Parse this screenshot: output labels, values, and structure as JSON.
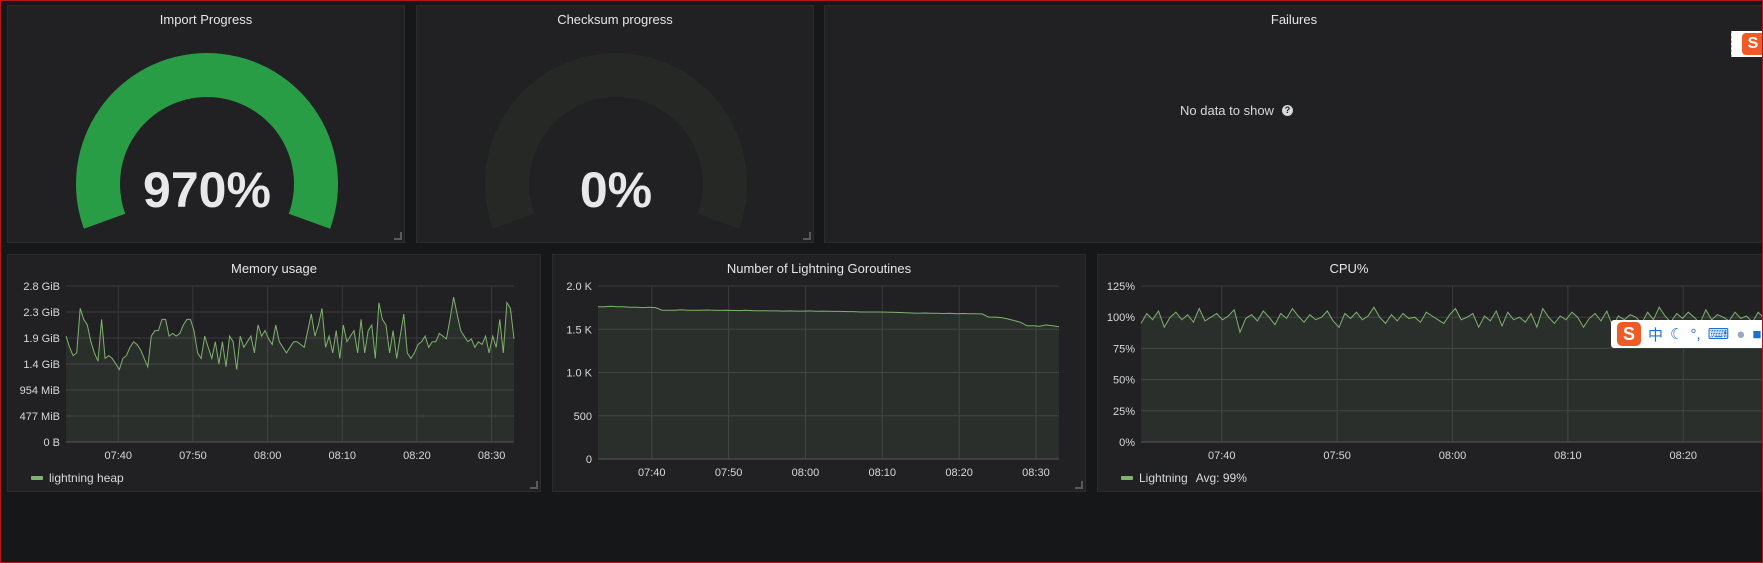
{
  "panels": {
    "import_progress": {
      "title": "Import Progress",
      "value": "970%",
      "fill": 1.0,
      "color": "#299c46"
    },
    "checksum_progress": {
      "title": "Checksum progress",
      "value": "0%",
      "fill": 0.0,
      "color": "#2b2d2a"
    },
    "failures": {
      "title": "Failures",
      "no_data_text": "No data to show",
      "help_icon": "question-circle-icon"
    },
    "memory": {
      "title": "Memory usage",
      "legend": "lightning heap"
    },
    "goroutines": {
      "title": "Number of Lightning Goroutines"
    },
    "cpu": {
      "title": "CPU%",
      "legend_name": "Lightning",
      "legend_avg": "Avg: 99%"
    }
  },
  "ime": {
    "logo": "S",
    "lang": "中",
    "icons": [
      "moon-icon",
      "punctuation-icon",
      "keyboard-icon",
      "user-icon",
      "shirt-icon"
    ]
  },
  "colors": {
    "series": "#7eb26d",
    "gauge_green": "#299c46",
    "panel_bg": "#212124",
    "page_bg": "#161719"
  },
  "chart_data": [
    {
      "name": "memory",
      "type": "line",
      "title": "Memory usage",
      "x_ticks": [
        "07:40",
        "07:50",
        "08:00",
        "08:10",
        "08:20",
        "08:30"
      ],
      "y_ticks": [
        "0 B",
        "477 MiB",
        "954 MiB",
        "1.4 GiB",
        "1.9 GiB",
        "2.3 GiB",
        "2.8 GiB"
      ],
      "ylim": [
        0,
        2.8
      ],
      "xlim": [
        "07:33",
        "08:33"
      ],
      "series": [
        {
          "name": "lightning heap",
          "values": [
            1.9,
            1.7,
            1.55,
            1.6,
            2.4,
            2.2,
            2.1,
            1.8,
            1.6,
            1.45,
            2.2,
            1.5,
            1.55,
            1.5,
            1.4,
            1.3,
            1.5,
            1.55,
            1.7,
            1.8,
            1.75,
            1.65,
            1.5,
            1.35,
            1.9,
            2.0,
            2.0,
            2.2,
            2.2,
            1.9,
            1.95,
            1.9,
            1.95,
            2.1,
            2.2,
            2.2,
            2.0,
            1.6,
            1.5,
            1.9,
            1.7,
            1.5,
            1.8,
            1.4,
            1.8,
            1.35,
            1.9,
            1.8,
            1.3,
            1.9,
            1.7,
            1.8,
            1.9,
            1.6,
            2.1,
            1.9,
            2.0,
            1.85,
            1.75,
            2.1,
            1.8,
            1.7,
            1.6,
            1.7,
            1.8,
            1.8,
            1.75,
            1.7,
            2.0,
            2.3,
            1.9,
            2.1,
            2.4,
            1.7,
            1.9,
            1.6,
            2.0,
            1.5,
            2.1,
            1.8,
            1.9,
            2.0,
            1.6,
            2.2,
            1.6,
            2.0,
            2.1,
            1.5,
            2.5,
            2.2,
            2.1,
            1.6,
            2.0,
            1.5,
            1.9,
            2.3,
            1.6,
            1.5,
            1.6,
            1.75,
            1.8,
            1.9,
            1.7,
            1.8,
            1.8,
            1.95,
            1.9,
            1.85,
            2.2,
            2.6,
            2.3,
            2.0,
            1.9,
            1.8,
            1.85,
            1.7,
            1.8,
            1.75,
            1.9,
            1.6,
            1.9,
            1.7,
            2.2,
            1.6,
            2.5,
            2.4,
            1.85
          ]
        }
      ]
    },
    {
      "name": "goroutines",
      "type": "line",
      "title": "Number of Lightning Goroutines",
      "x_ticks": [
        "07:40",
        "07:50",
        "08:00",
        "08:10",
        "08:20",
        "08:30"
      ],
      "y_ticks": [
        "0",
        "500",
        "1.0 K",
        "1.5 K",
        "2.0 K"
      ],
      "ylim": [
        0,
        2000
      ],
      "xlim": [
        "07:33",
        "08:33"
      ],
      "series": [
        {
          "name": "",
          "values": [
            1760,
            1760,
            1765,
            1760,
            1760,
            1755,
            1755,
            1750,
            1755,
            1750,
            1720,
            1720,
            1720,
            1725,
            1720,
            1720,
            1720,
            1722,
            1720,
            1718,
            1720,
            1718,
            1716,
            1720,
            1716,
            1712,
            1715,
            1712,
            1712,
            1710,
            1712,
            1710,
            1710,
            1712,
            1708,
            1710,
            1708,
            1706,
            1706,
            1704,
            1704,
            1700,
            1700,
            1700,
            1700,
            1698,
            1696,
            1694,
            1690,
            1688,
            1686,
            1688,
            1686,
            1684,
            1682,
            1684,
            1680,
            1682,
            1680,
            1680,
            1678,
            1640,
            1640,
            1635,
            1620,
            1600,
            1580,
            1540,
            1540,
            1535,
            1550,
            1540,
            1530
          ]
        }
      ]
    },
    {
      "name": "cpu",
      "type": "line",
      "title": "CPU%",
      "x_ticks": [
        "07:40",
        "07:50",
        "08:00",
        "08:10",
        "08:20"
      ],
      "y_ticks": [
        "0%",
        "25%",
        "50%",
        "75%",
        "100%",
        "125%"
      ],
      "ylim": [
        0,
        125
      ],
      "xlim": [
        "07:33",
        "08:27"
      ],
      "series": [
        {
          "name": "Lightning",
          "values": [
            95,
            103,
            98,
            105,
            92,
            100,
            104,
            98,
            102,
            96,
            107,
            97,
            100,
            103,
            98,
            101,
            106,
            88,
            99,
            102,
            97,
            105,
            100,
            94,
            103,
            99,
            107,
            101,
            96,
            102,
            98,
            100,
            105,
            97,
            92,
            103,
            99,
            104,
            98,
            101,
            108,
            100,
            95,
            102,
            97,
            103,
            99,
            100,
            96,
            104,
            101,
            98,
            95,
            102,
            107,
            98,
            100,
            103,
            92,
            101,
            97,
            105,
            93,
            104,
            98,
            100,
            96,
            103,
            92,
            107,
            100,
            95,
            101,
            98,
            104,
            100,
            92,
            99,
            103,
            97,
            105,
            93,
            101,
            98,
            102,
            100,
            95,
            104,
            98,
            108,
            101,
            96,
            103,
            99,
            104,
            100,
            95,
            106,
            98,
            102,
            100,
            97,
            104,
            99,
            101,
            96,
            104,
            99
          ]
        }
      ]
    }
  ]
}
